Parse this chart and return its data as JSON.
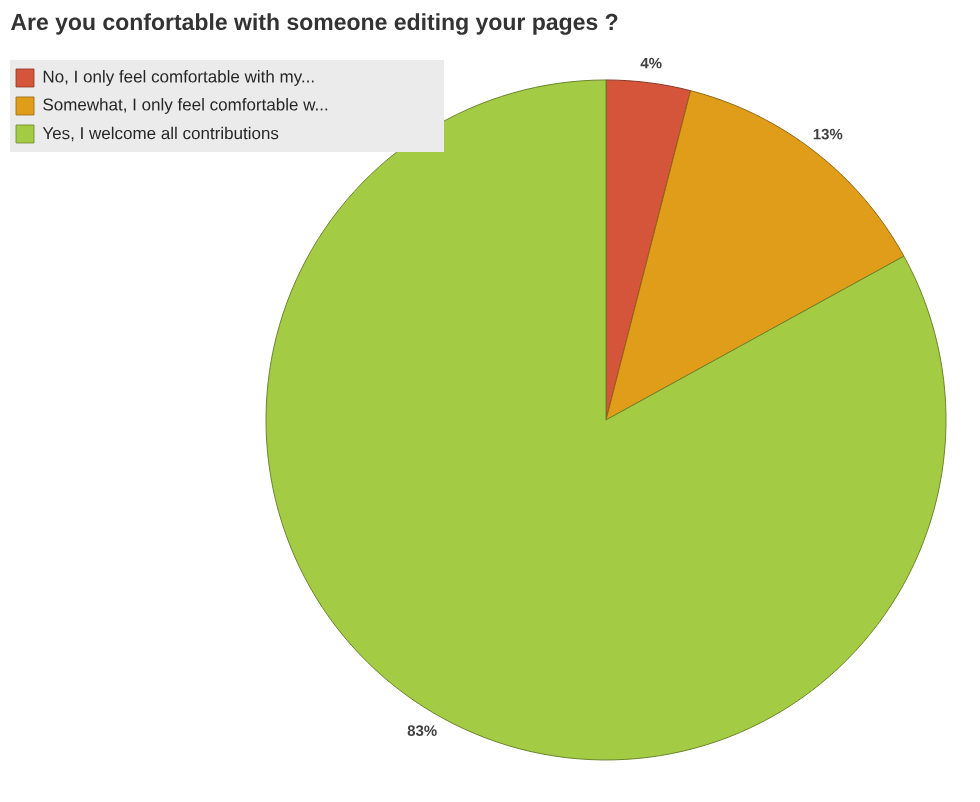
{
  "chart_data": {
    "type": "pie",
    "title": "Are you confortable with someone editing your pages ?",
    "categories": [
      "No, I only feel comfortable with my...",
      "Somewhat, I only feel comfortable w...",
      "Yes, I welcome all contributions"
    ],
    "values": [
      4,
      13,
      83
    ],
    "value_labels": [
      "4%",
      "13%",
      "83%"
    ],
    "colors": [
      "#d4553a",
      "#e09d1a",
      "#a3cc44"
    ],
    "legend": "top left"
  }
}
